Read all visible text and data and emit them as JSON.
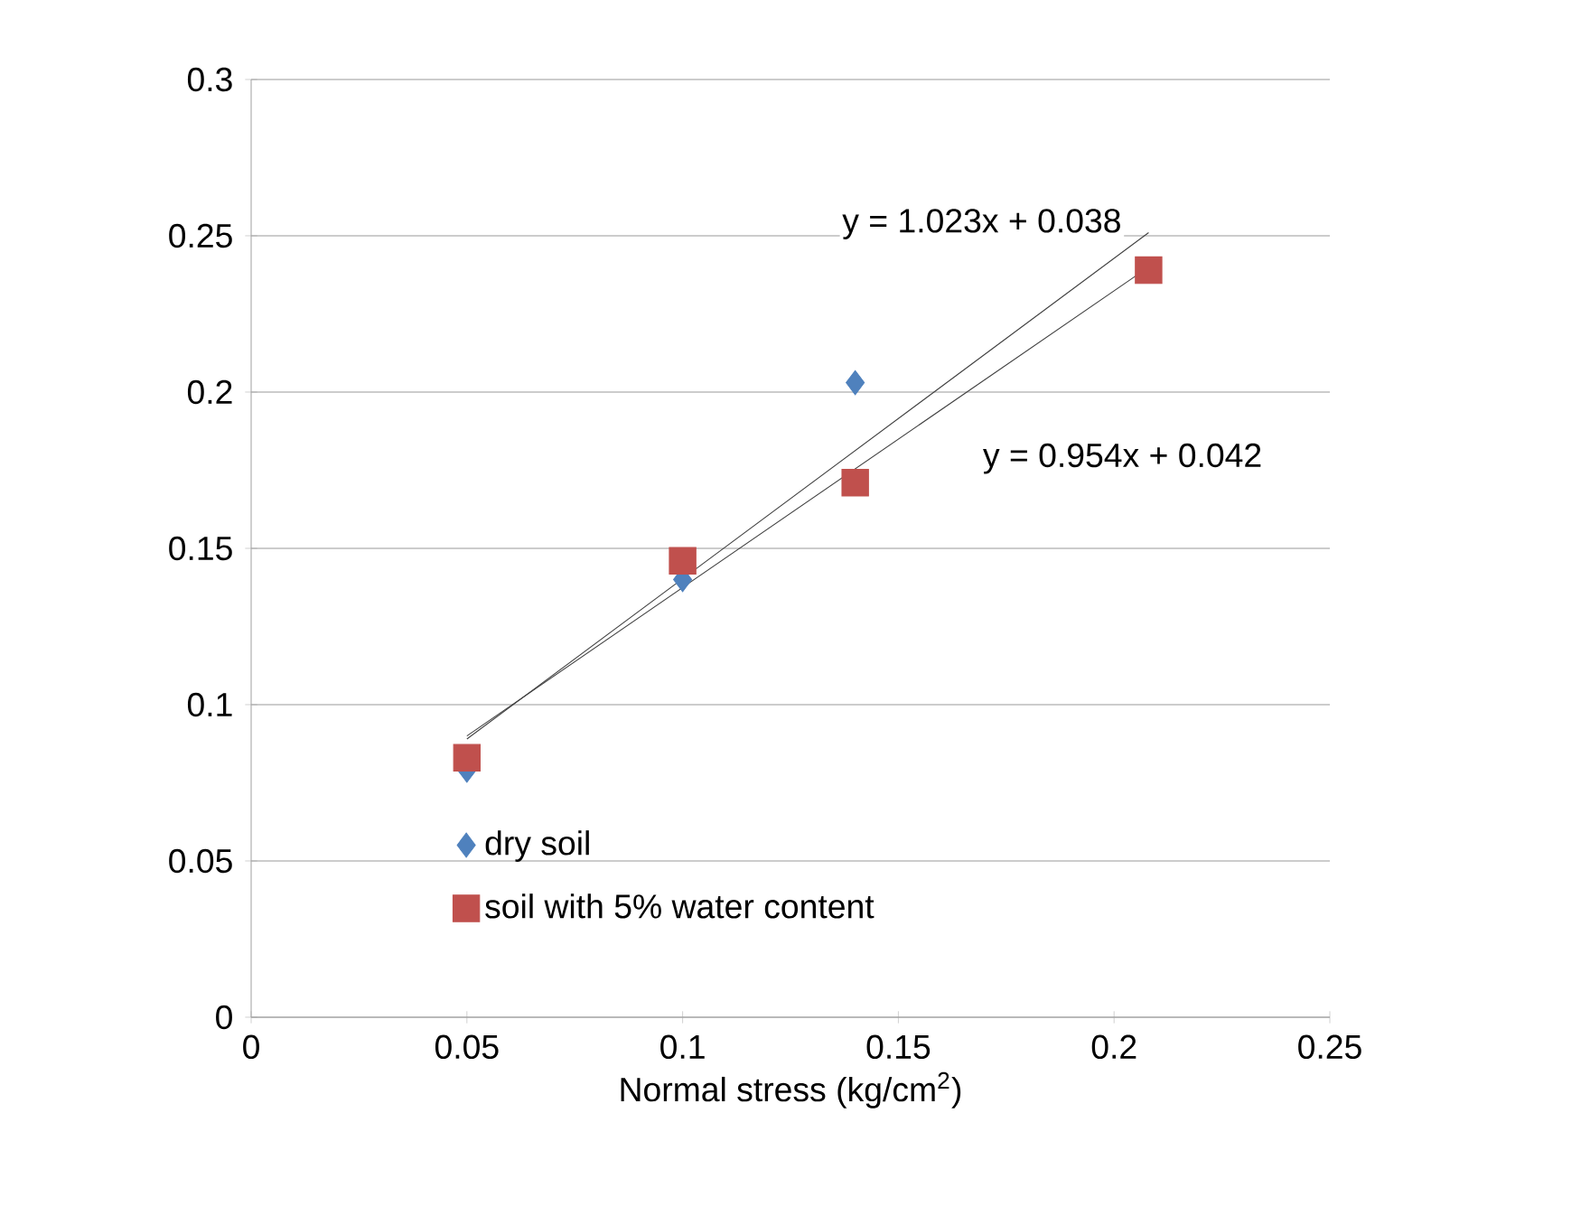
{
  "chart_data": {
    "type": "scatter",
    "xlabel": "Normal stress (kg/cm$^{2}$)",
    "xlim": [
      0,
      0.25
    ],
    "xticks": [
      0,
      0.05,
      0.1,
      0.15,
      0.2,
      0.25
    ],
    "ylim": [
      0,
      0.3
    ],
    "yticks": [
      0,
      0.05,
      0.1,
      0.15,
      0.2,
      0.25,
      0.3
    ],
    "grid": "y",
    "legend": "bottom left",
    "series": [
      {
        "name": "dry soil",
        "color": "#4f81bd",
        "marker": "diamond",
        "x": [
          0.05,
          0.1,
          0.14
        ],
        "values": [
          0.079,
          0.14,
          0.203
        ]
      },
      {
        "name": "soil with 5% water content",
        "color": "#c0504d",
        "marker": "square",
        "x": [
          0.05,
          0.1,
          0.14,
          0.208
        ],
        "values": [
          0.083,
          0.146,
          0.171,
          0.239
        ]
      },
      {
        "type": "line",
        "color": "#404040",
        "marker": "none",
        "x": [
          0.05,
          0.208
        ],
        "values": [
          0.089,
          0.251
        ]
      },
      {
        "type": "line",
        "color": "#404040",
        "marker": "none",
        "x": [
          0.05,
          0.208
        ],
        "values": [
          0.09,
          0.24
        ]
      }
    ],
    "annotations": [
      "y = 1.023x + 0.038",
      "y = 0.954x + 0.042"
    ]
  }
}
